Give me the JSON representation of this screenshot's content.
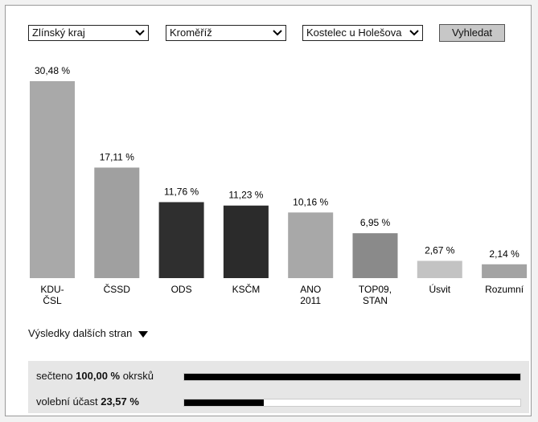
{
  "filters": {
    "region": "Zlínský kraj",
    "district": "Kroměříž",
    "municipality": "Kostelec u Holešova",
    "search_label": "Vyhledat"
  },
  "chart_data": {
    "type": "bar",
    "categories": [
      "KDU-ČSL",
      "ČSSD",
      "ODS",
      "KSČM",
      "ANO 2011",
      "TOP09, STAN",
      "Úsvit",
      "Rozumní"
    ],
    "category_lines": [
      [
        "KDU-",
        "ČSL"
      ],
      [
        "ČSSD"
      ],
      [
        "ODS"
      ],
      [
        "KSČM"
      ],
      [
        "ANO",
        "2011"
      ],
      [
        "TOP09,",
        "STAN"
      ],
      [
        "Úsvit"
      ],
      [
        "Rozumní"
      ]
    ],
    "values": [
      30.48,
      17.11,
      11.76,
      11.23,
      10.16,
      6.95,
      2.67,
      2.14
    ],
    "value_labels": [
      "30,48 %",
      "17,11 %",
      "11,76 %",
      "11,23 %",
      "10,16 %",
      "6,95 %",
      "2,67 %",
      "2,14 %"
    ],
    "colors": [
      "#a9a9a9",
      "#a0a0a0",
      "#2f2f2f",
      "#2b2b2b",
      "#a8a8a8",
      "#8a8a8a",
      "#c3c3c3",
      "#a3a3a3"
    ],
    "ylim": [
      0,
      30.48
    ],
    "grid": false
  },
  "more_results": {
    "label": "Výsledky dalších stran",
    "icon": "triangle-down-icon"
  },
  "stats": {
    "counted": {
      "prefix": "sečteno ",
      "value": "100,00 %",
      "suffix": " okrsků",
      "fraction": 1.0
    },
    "turnout": {
      "prefix": "volební účast ",
      "value": "23,57 %",
      "fraction": 0.2357
    }
  }
}
